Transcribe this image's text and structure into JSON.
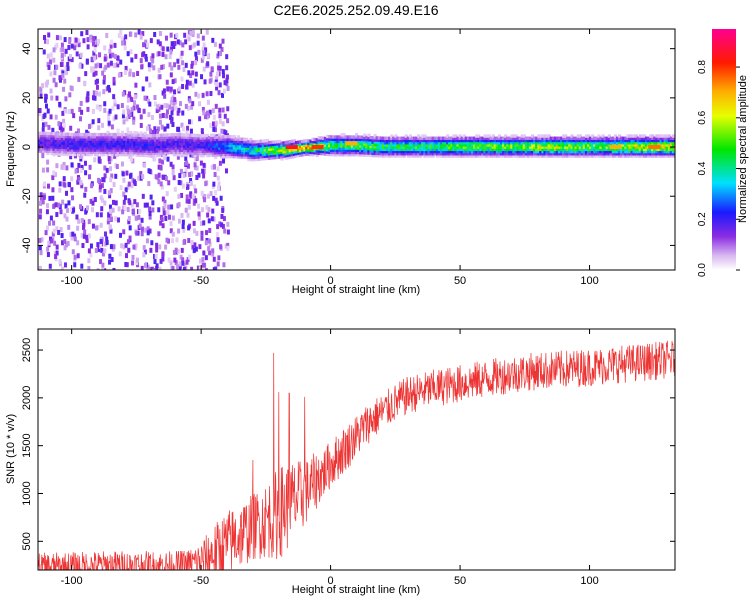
{
  "title": "C2E6.2025.252.09.49.E16",
  "chart_data": [
    {
      "type": "heatmap",
      "xlabel": "Height of straight line (km)",
      "ylabel": "Frequency (Hz)",
      "xlim": [
        -113,
        133
      ],
      "ylim": [
        -50,
        48
      ],
      "xticks": [
        -100,
        -50,
        0,
        50,
        100
      ],
      "yticks": [
        -40,
        -20,
        0,
        20,
        40
      ],
      "grid": false,
      "colorbar": {
        "label": "Normalized spectral amplitude",
        "range": [
          0,
          0.95
        ],
        "ticks": [
          0.0,
          0.2,
          0.4,
          0.6,
          0.8
        ],
        "colormap": "rainbow (white-violet-blue-cyan-green-yellow-orange-red-magenta)"
      },
      "bands": [
        {
          "height_km": -110,
          "center_hz": 2.0,
          "half_width_hz": 4.0,
          "amplitude": 0.18
        },
        {
          "height_km": -100,
          "center_hz": 1.5,
          "half_width_hz": 4.0,
          "amplitude": 0.2
        },
        {
          "height_km": -90,
          "center_hz": 1.5,
          "half_width_hz": 4.0,
          "amplitude": 0.2
        },
        {
          "height_km": -80,
          "center_hz": 1.5,
          "half_width_hz": 4.0,
          "amplitude": 0.2
        },
        {
          "height_km": -70,
          "center_hz": 1.0,
          "half_width_hz": 4.0,
          "amplitude": 0.2
        },
        {
          "height_km": -60,
          "center_hz": 1.5,
          "half_width_hz": 4.0,
          "amplitude": 0.18
        },
        {
          "height_km": -50,
          "center_hz": 1.0,
          "half_width_hz": 4.0,
          "amplitude": 0.18
        },
        {
          "height_km": -40,
          "center_hz": 0.5,
          "half_width_hz": 3.5,
          "amplitude": 0.3
        },
        {
          "height_km": -30,
          "center_hz": -1.0,
          "half_width_hz": 3.0,
          "amplitude": 0.4
        },
        {
          "height_km": -20,
          "center_hz": -1.0,
          "half_width_hz": 2.5,
          "amplitude": 0.6
        },
        {
          "height_km": -10,
          "center_hz": 0.0,
          "half_width_hz": 2.0,
          "amplitude": 0.75
        },
        {
          "height_km": 0,
          "center_hz": 1.0,
          "half_width_hz": 3.0,
          "amplitude": 0.45
        },
        {
          "height_km": 10,
          "center_hz": 1.0,
          "half_width_hz": 3.0,
          "amplitude": 0.5
        },
        {
          "height_km": 20,
          "center_hz": 0.5,
          "half_width_hz": 3.0,
          "amplitude": 0.45
        },
        {
          "height_km": 30,
          "center_hz": 0.5,
          "half_width_hz": 3.0,
          "amplitude": 0.45
        },
        {
          "height_km": 40,
          "center_hz": 0.5,
          "half_width_hz": 3.0,
          "amplitude": 0.45
        },
        {
          "height_km": 50,
          "center_hz": 0.5,
          "half_width_hz": 3.0,
          "amplitude": 0.5
        },
        {
          "height_km": 60,
          "center_hz": 0.5,
          "half_width_hz": 3.0,
          "amplitude": 0.5
        },
        {
          "height_km": 70,
          "center_hz": 0.5,
          "half_width_hz": 3.0,
          "amplitude": 0.5
        },
        {
          "height_km": 80,
          "center_hz": 0.5,
          "half_width_hz": 3.0,
          "amplitude": 0.55
        },
        {
          "height_km": 90,
          "center_hz": 0.5,
          "half_width_hz": 3.0,
          "amplitude": 0.55
        },
        {
          "height_km": 100,
          "center_hz": 0.5,
          "half_width_hz": 3.0,
          "amplitude": 0.5
        },
        {
          "height_km": 110,
          "center_hz": 0.5,
          "half_width_hz": 3.0,
          "amplitude": 0.55
        },
        {
          "height_km": 120,
          "center_hz": 0.5,
          "half_width_hz": 3.0,
          "amplitude": 0.6
        },
        {
          "height_km": 130,
          "center_hz": 0.5,
          "half_width_hz": 3.0,
          "amplitude": 0.6
        }
      ],
      "peak_amplitude_points": [
        {
          "height_km": -15,
          "frequency_hz": 0.0,
          "amplitude": 0.85
        },
        {
          "height_km": -5,
          "frequency_hz": 0.0,
          "amplitude": 0.8
        },
        {
          "height_km": 8,
          "frequency_hz": 1.5,
          "amplitude": 0.7
        },
        {
          "height_km": 110,
          "frequency_hz": 0.0,
          "amplitude": 0.7
        },
        {
          "height_km": 125,
          "frequency_hz": 0.0,
          "amplitude": 0.75
        }
      ],
      "noise_region": {
        "height_km_range": [
          -113,
          -40
        ],
        "frequency_hz_range": [
          -50,
          48
        ],
        "amplitude": 0.1
      }
    },
    {
      "type": "line",
      "xlabel": "Height of straight line (km)",
      "ylabel": "SNR (10 * v/v)",
      "xlim": [
        -113,
        133
      ],
      "ylim": [
        200,
        2720
      ],
      "xticks": [
        -100,
        -50,
        0,
        50,
        100
      ],
      "yticks": [
        500,
        1000,
        1500,
        2000,
        2500
      ],
      "grid": false,
      "series": [
        {
          "name": "SNR",
          "color": "#ee3333",
          "x": [
            -113,
            -100,
            -90,
            -80,
            -70,
            -60,
            -55,
            -50,
            -45,
            -40,
            -35,
            -30,
            -25,
            -20,
            -15,
            -10,
            -5,
            0,
            5,
            10,
            15,
            20,
            25,
            30,
            40,
            50,
            60,
            70,
            80,
            90,
            100,
            110,
            120,
            130,
            133
          ],
          "mean": [
            230,
            240,
            250,
            255,
            250,
            250,
            260,
            300,
            380,
            480,
            560,
            650,
            720,
            800,
            900,
            1000,
            1150,
            1300,
            1450,
            1600,
            1750,
            1850,
            1950,
            2030,
            2100,
            2150,
            2200,
            2250,
            2280,
            2300,
            2320,
            2350,
            2370,
            2400,
            2410
          ],
          "noise_amplitude": [
            150,
            150,
            150,
            150,
            150,
            150,
            160,
            200,
            300,
            350,
            350,
            350,
            400,
            500,
            450,
            350,
            300,
            250,
            250,
            230,
            220,
            200,
            200,
            200,
            200,
            200,
            200,
            200,
            200,
            200,
            200,
            200,
            200,
            200,
            200
          ],
          "spikes": [
            {
              "x": -30,
              "y": 1350
            },
            {
              "x": -22,
              "y": 2470
            },
            {
              "x": -20,
              "y": 2060
            },
            {
              "x": -16,
              "y": 2050
            },
            {
              "x": -10,
              "y": 2010
            }
          ]
        }
      ]
    }
  ]
}
